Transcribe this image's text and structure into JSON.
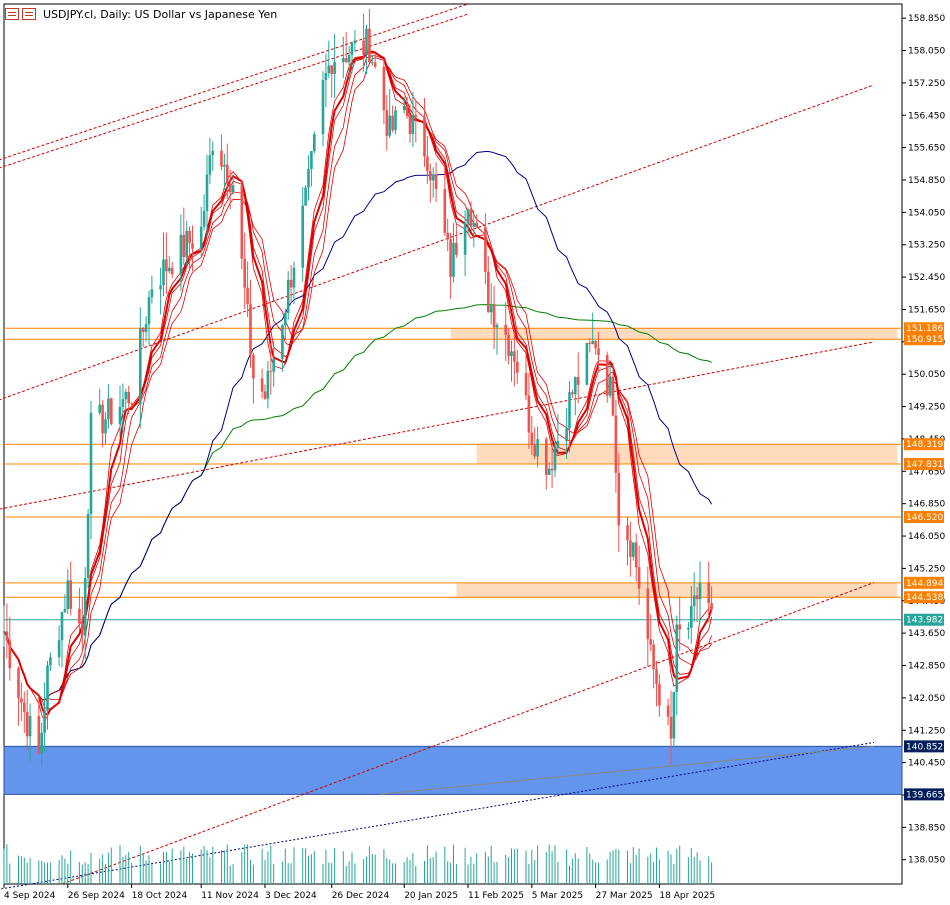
{
  "header": {
    "symbol_text": "USDJPY.cl, Daily:  US Dollar vs Japanese Yen",
    "icon_1": "grid-icon",
    "icon_2": "grid-icon"
  },
  "colors": {
    "bull": "#26a69a",
    "bear": "#ef5350",
    "ma_red": "#e00000",
    "ma_blue": "#000080",
    "ma_green": "#008000",
    "channel": "#cc0000",
    "level": "#ff8000",
    "zone": "#ffdbbd",
    "support_zone": "#6495ed",
    "current": "#26a69a",
    "support_tag": "#001f5b"
  },
  "chart_data": {
    "type": "candlestick",
    "title": "USDJPY.cl, Daily:  US Dollar vs Japanese Yen",
    "ylim": [
      137.45,
      159.2
    ],
    "y_ticks": [
      "158.850",
      "158.050",
      "157.250",
      "156.450",
      "155.650",
      "154.850",
      "154.050",
      "153.250",
      "152.450",
      "151.650",
      "150.850",
      "150.050",
      "149.250",
      "148.450",
      "147.650",
      "146.850",
      "146.050",
      "145.250",
      "144.450",
      "143.650",
      "142.850",
      "142.050",
      "141.250",
      "140.450",
      "139.650",
      "138.850",
      "138.050"
    ],
    "x_ticks": [
      "4 Sep 2024",
      "26 Sep 2024",
      "18 Oct 2024",
      "11 Nov 2024",
      "3 Dec 2024",
      "26 Dec 2024",
      "20 Jan 2025",
      "11 Feb 2025",
      "5 Mar 2025",
      "27 Mar 2025",
      "18 Apr 2025"
    ],
    "price_tags": [
      {
        "label": "151.186",
        "value": 151.186,
        "style": "level"
      },
      {
        "label": "150.915",
        "value": 150.915,
        "style": "level"
      },
      {
        "label": "148.319",
        "value": 148.319,
        "style": "level"
      },
      {
        "label": "147.831",
        "value": 147.831,
        "style": "level"
      },
      {
        "label": "146.520",
        "value": 146.52,
        "style": "level"
      },
      {
        "label": "144.894",
        "value": 144.894,
        "style": "level"
      },
      {
        "label": "144.538",
        "value": 144.538,
        "style": "level"
      },
      {
        "label": "143.982",
        "value": 143.982,
        "style": "current"
      },
      {
        "label": "140.852",
        "value": 140.852,
        "style": "support"
      },
      {
        "label": "139.665",
        "value": 139.665,
        "style": "support"
      }
    ],
    "zones": [
      {
        "from_date": "5 Feb 2025",
        "to_date": "9 Jul 2025",
        "low": 150.915,
        "high": 151.186
      },
      {
        "from_date": "14 Feb 2025",
        "to_date": "9 Jul 2025",
        "low": 147.831,
        "high": 148.319
      },
      {
        "from_date": "7 Feb 2025",
        "to_date": "9 Jul 2025",
        "low": 144.538,
        "high": 144.894
      },
      {
        "from_date": "4 Sep 2024",
        "to_date": "9 Jul 2025",
        "low": 139.665,
        "high": 140.852,
        "kind": "support"
      }
    ],
    "close_points": [
      {
        "date": "4 Sep 2024",
        "close": 143.7
      },
      {
        "date": "11 Sep 2024",
        "close": 141.7
      },
      {
        "date": "16 Sep 2024",
        "close": 140.6
      },
      {
        "date": "19 Sep 2024",
        "close": 142.6
      },
      {
        "date": "26 Sep 2024",
        "close": 144.8
      },
      {
        "date": "1 Oct 2024",
        "close": 143.6
      },
      {
        "date": "4 Oct 2024",
        "close": 148.7
      },
      {
        "date": "11 Oct 2024",
        "close": 149.1
      },
      {
        "date": "18 Oct 2024",
        "close": 149.6
      },
      {
        "date": "25 Oct 2024",
        "close": 152.3
      },
      {
        "date": "1 Nov 2024",
        "close": 152.9
      },
      {
        "date": "11 Nov 2024",
        "close": 153.6
      },
      {
        "date": "15 Nov 2024",
        "close": 155.9
      },
      {
        "date": "22 Nov 2024",
        "close": 154.8
      },
      {
        "date": "29 Nov 2024",
        "close": 150.0
      },
      {
        "date": "3 Dec 2024",
        "close": 149.5
      },
      {
        "date": "10 Dec 2024",
        "close": 151.8
      },
      {
        "date": "18 Dec 2024",
        "close": 154.7
      },
      {
        "date": "23 Dec 2024",
        "close": 157.1
      },
      {
        "date": "26 Dec 2024",
        "close": 157.9
      },
      {
        "date": "8 Jan 2025",
        "close": 158.2
      },
      {
        "date": "15 Jan 2025",
        "close": 156.0
      },
      {
        "date": "20 Jan 2025",
        "close": 156.6
      },
      {
        "date": "28 Jan 2025",
        "close": 155.5
      },
      {
        "date": "5 Feb 2025",
        "close": 152.7
      },
      {
        "date": "11 Feb 2025",
        "close": 154.5
      },
      {
        "date": "18 Feb 2025",
        "close": 151.9
      },
      {
        "date": "27 Feb 2025",
        "close": 150.6
      },
      {
        "date": "5 Mar 2025",
        "close": 148.6
      },
      {
        "date": "11 Mar 2025",
        "close": 147.8
      },
      {
        "date": "19 Mar 2025",
        "close": 149.6
      },
      {
        "date": "25 Mar 2025",
        "close": 150.6
      },
      {
        "date": "27 Mar 2025",
        "close": 150.9
      },
      {
        "date": "2 Apr 2025",
        "close": 149.4
      },
      {
        "date": "4 Apr 2025",
        "close": 146.6
      },
      {
        "date": "9 Apr 2025",
        "close": 145.8
      },
      {
        "date": "15 Apr 2025",
        "close": 143.0
      },
      {
        "date": "18 Apr 2025",
        "close": 142.2
      },
      {
        "date": "22 Apr 2025",
        "close": 140.9
      },
      {
        "date": "24 Apr 2025",
        "close": 143.5
      },
      {
        "date": "29 Apr 2025",
        "close": 143.9
      },
      {
        "date": "2 May 2025",
        "close": 144.9
      },
      {
        "date": "6 May 2025",
        "close": 143.982
      }
    ]
  }
}
